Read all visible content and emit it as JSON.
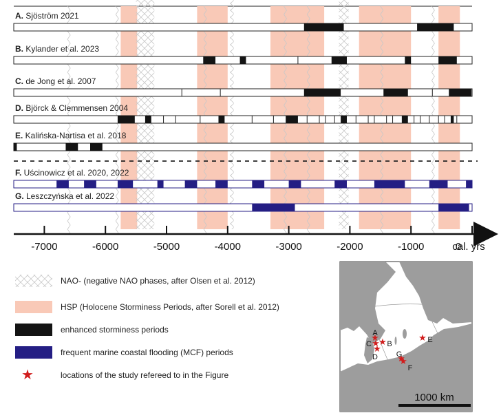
{
  "axis": {
    "min": -7500,
    "max": 0,
    "ticks": [
      {
        "value": -7000,
        "label": "-7000"
      },
      {
        "value": -6000,
        "label": "-6000"
      },
      {
        "value": -5000,
        "label": "-5000"
      },
      {
        "value": -4000,
        "label": "-4000"
      },
      {
        "value": -3000,
        "label": "-3000"
      },
      {
        "value": -2000,
        "label": "-2000"
      },
      {
        "value": -1000,
        "label": "-1000"
      },
      {
        "value": 0,
        "label": "0"
      }
    ],
    "unit_label": "cal. yrs"
  },
  "hsp_periods": [
    [
      -5750,
      -5480
    ],
    [
      -4500,
      -4000
    ],
    [
      -3300,
      -2420
    ],
    [
      -1850,
      -1000
    ],
    [
      -550,
      -200
    ]
  ],
  "nao_periods": [
    [
      -5500,
      -5200
    ],
    [
      -3960,
      -3900
    ],
    [
      -2180,
      -2020
    ]
  ],
  "nao_lines": [
    -6620,
    -5830,
    -4390,
    -3080,
    -2700,
    -1500,
    -660
  ],
  "records": [
    {
      "letter": "A.",
      "label": "Sjöström 2021",
      "type": "storm",
      "intervals": [
        [
          -2750,
          -2100
        ],
        [
          -900,
          -300
        ]
      ],
      "ticks": []
    },
    {
      "letter": "B.",
      "label": "Kylander et al. 2023",
      "type": "storm",
      "intervals": [
        [
          -4400,
          -4200
        ],
        [
          -3800,
          -3700
        ],
        [
          -2300,
          -2050
        ],
        [
          -1100,
          -1000
        ],
        [
          -550,
          -250
        ]
      ],
      "ticks": [
        -2850
      ]
    },
    {
      "letter": "C.",
      "label": "de Jong et al. 2007",
      "type": "storm",
      "intervals": [
        [
          -2750,
          -2150
        ],
        [
          -1450,
          -1050
        ],
        [
          -380,
          -10
        ]
      ],
      "ticks": [
        -4750,
        -4120,
        -650
      ]
    },
    {
      "letter": "D.",
      "label": "Björck & Clemmensen 2004",
      "type": "storm",
      "intervals": [
        [
          -5800,
          -5520
        ],
        [
          -5350,
          -5250
        ],
        [
          -4150,
          -4050
        ],
        [
          -3050,
          -2850
        ],
        [
          -2150,
          -2050
        ],
        [
          -1150,
          -1050
        ],
        [
          -350,
          -300
        ]
      ],
      "ticks": [
        -5050,
        -4850,
        -4450,
        -3600,
        -3250,
        -2700,
        -2500,
        -2400,
        -2250,
        -1900,
        -1700,
        -1600,
        -1400,
        -1300,
        -950,
        -850,
        -700,
        -550,
        -450,
        -250
      ]
    },
    {
      "letter": "E.",
      "label": "Kalińska-Nartisa et al. 2018",
      "type": "storm",
      "intervals": [
        [
          -7500,
          -7450
        ],
        [
          -6650,
          -6450
        ],
        [
          -6250,
          -6050
        ]
      ],
      "ticks": []
    },
    {
      "letter": "F.",
      "label": "Uścinowicz et al. 2020, 2022",
      "type": "mcf",
      "intervals": [
        [
          -6800,
          -6600
        ],
        [
          -6350,
          -6150
        ],
        [
          -5800,
          -5550
        ],
        [
          -5150,
          -5050
        ],
        [
          -4700,
          -4500
        ],
        [
          -4200,
          -4000
        ],
        [
          -3600,
          -3400
        ],
        [
          -3000,
          -2800
        ],
        [
          -2250,
          -2050
        ],
        [
          -1600,
          -1100
        ],
        [
          -700,
          -400
        ],
        [
          -100,
          0
        ]
      ],
      "ticks": []
    },
    {
      "letter": "G.",
      "label": "Leszczyńska et al. 2022",
      "type": "mcf",
      "intervals": [
        [
          -3600,
          -2900
        ],
        [
          -550,
          -50
        ]
      ],
      "ticks": []
    }
  ],
  "legend": [
    {
      "kind": "nao",
      "text": "NAO- (negative NAO phases, after Olsen et al. 2012)"
    },
    {
      "kind": "hsp",
      "text": "HSP (Holocene Storminess Periods, after Sorell et al. 2012)"
    },
    {
      "kind": "storm",
      "text": "enhanced storminess periods"
    },
    {
      "kind": "mcf",
      "text": "frequent marine coastal flooding (MCF) periods"
    },
    {
      "kind": "star",
      "text": "locations of the study refereed to in the Figure"
    }
  ],
  "map": {
    "scale_label": "1000 km",
    "sites": [
      {
        "letter": "A"
      },
      {
        "letter": "B"
      },
      {
        "letter": "C"
      },
      {
        "letter": "D"
      },
      {
        "letter": "E"
      },
      {
        "letter": "F"
      },
      {
        "letter": "G"
      }
    ]
  },
  "colors": {
    "hsp": "#f9c9b7",
    "storm": "#141414",
    "mcf": "#241e84",
    "nao_line": "#c8c8c8",
    "star": "#d11d1d",
    "sea": "#ffffff",
    "land": "#9d9d9d"
  }
}
